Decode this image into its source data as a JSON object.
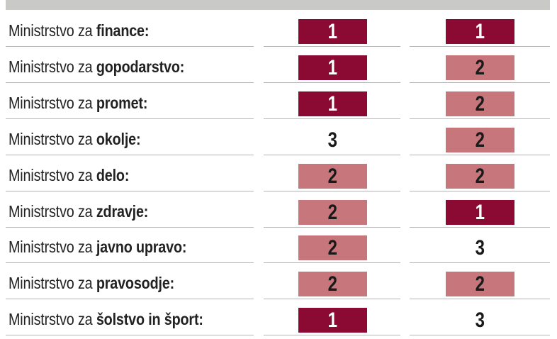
{
  "table": {
    "cell_colors": {
      "1": {
        "background": "#8a0a33",
        "text": "#ffffff"
      },
      "2": {
        "background": "#c7777c",
        "text": "#1a1a1a"
      },
      "3": {
        "background": "#ffffff",
        "text": "#1a1a1a"
      }
    },
    "rows": [
      {
        "prefix": "Ministrstvo za",
        "name": "finance:",
        "values": [
          1,
          1
        ]
      },
      {
        "prefix": "Ministrstvo za",
        "name": "gopodarstvo:",
        "values": [
          1,
          2
        ]
      },
      {
        "prefix": "Ministrstvo za",
        "name": "promet:",
        "values": [
          1,
          2
        ]
      },
      {
        "prefix": "Ministrstvo za",
        "name": "okolje:",
        "values": [
          3,
          2
        ]
      },
      {
        "prefix": "Ministrstvo za",
        "name": "delo:",
        "values": [
          2,
          2
        ]
      },
      {
        "prefix": "Ministrstvo za",
        "name": "zdravje:",
        "values": [
          2,
          1
        ]
      },
      {
        "prefix": "Ministrstvo za",
        "name": "javno upravo:",
        "values": [
          2,
          3
        ]
      },
      {
        "prefix": "Ministrstvo za",
        "name": "pravosodje:",
        "values": [
          2,
          2
        ]
      },
      {
        "prefix": "Ministrstvo za",
        "name": "šolstvo in šport:",
        "values": [
          1,
          3
        ]
      }
    ]
  }
}
